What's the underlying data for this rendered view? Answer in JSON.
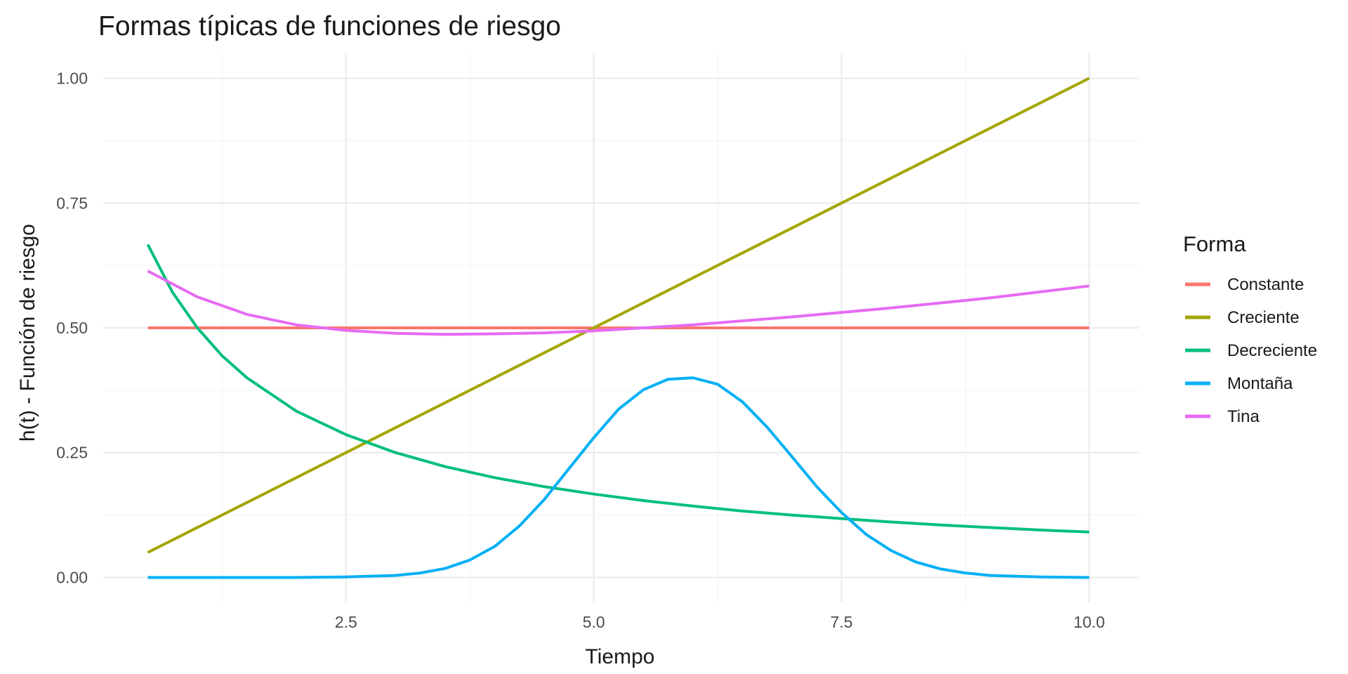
{
  "chart_data": {
    "type": "line",
    "title": "Formas típicas de funciones de riesgo",
    "xlabel": "Tiempo",
    "ylabel": "h(t) - Función de riesgo",
    "xlim": [
      0.05,
      10.5
    ],
    "ylim": [
      -0.05,
      1.05
    ],
    "x_ticks": [
      2.5,
      5.0,
      7.5,
      10.0
    ],
    "x_tick_labels": [
      "2.5",
      "5.0",
      "7.5",
      "10.0"
    ],
    "y_ticks": [
      0,
      0.25,
      0.5,
      0.75,
      1.0
    ],
    "y_tick_labels": [
      "0.00",
      "0.25",
      "0.50",
      "0.75",
      "1.00"
    ],
    "grid": true,
    "legend": {
      "title": "Forma",
      "position": "right"
    },
    "series": [
      {
        "name": "Constante",
        "color": "#F8766D",
        "x": [
          0.5,
          10
        ],
        "y": [
          0.5,
          0.5
        ]
      },
      {
        "name": "Creciente",
        "color": "#A3A500",
        "x": [
          0.5,
          10
        ],
        "y": [
          0.05,
          1.0
        ]
      },
      {
        "name": "Decreciente",
        "color": "#00BF7D",
        "x": [
          0.5,
          0.75,
          1.0,
          1.25,
          1.5,
          2.0,
          2.5,
          3.0,
          3.5,
          4.0,
          4.5,
          5.0,
          5.5,
          6.0,
          6.5,
          7.0,
          7.5,
          8.0,
          8.5,
          9.0,
          9.5,
          10.0
        ],
        "y": [
          0.667,
          0.571,
          0.5,
          0.444,
          0.4,
          0.333,
          0.286,
          0.25,
          0.222,
          0.2,
          0.182,
          0.167,
          0.154,
          0.143,
          0.133,
          0.125,
          0.118,
          0.111,
          0.105,
          0.1,
          0.095,
          0.091
        ]
      },
      {
        "name": "Montaña",
        "color": "#00B0F6",
        "x": [
          0.5,
          1.0,
          1.5,
          2.0,
          2.5,
          3.0,
          3.25,
          3.5,
          3.75,
          4.0,
          4.25,
          4.5,
          4.75,
          5.0,
          5.25,
          5.5,
          5.75,
          6.0,
          6.25,
          6.5,
          6.75,
          7.0,
          7.25,
          7.5,
          7.75,
          8.0,
          8.25,
          8.5,
          8.75,
          9.0,
          9.5,
          10.0
        ],
        "y": [
          0.0,
          0.0,
          0.0,
          0.0,
          0.001,
          0.004,
          0.009,
          0.018,
          0.035,
          0.062,
          0.103,
          0.156,
          0.218,
          0.28,
          0.337,
          0.376,
          0.397,
          0.4,
          0.387,
          0.352,
          0.301,
          0.242,
          0.182,
          0.13,
          0.086,
          0.054,
          0.031,
          0.017,
          0.009,
          0.004,
          0.001,
          0.0
        ]
      },
      {
        "name": "Tina",
        "color": "#E76BF3",
        "x": [
          0.5,
          1.0,
          1.5,
          2.0,
          2.5,
          3.0,
          3.5,
          4.0,
          4.5,
          5.0,
          5.5,
          6.0,
          6.5,
          7.0,
          7.5,
          8.0,
          8.5,
          9.0,
          9.5,
          10.0
        ],
        "y": [
          0.614,
          0.562,
          0.527,
          0.506,
          0.495,
          0.489,
          0.487,
          0.488,
          0.49,
          0.494,
          0.5,
          0.506,
          0.514,
          0.522,
          0.531,
          0.54,
          0.55,
          0.56,
          0.572,
          0.584
        ]
      }
    ]
  }
}
